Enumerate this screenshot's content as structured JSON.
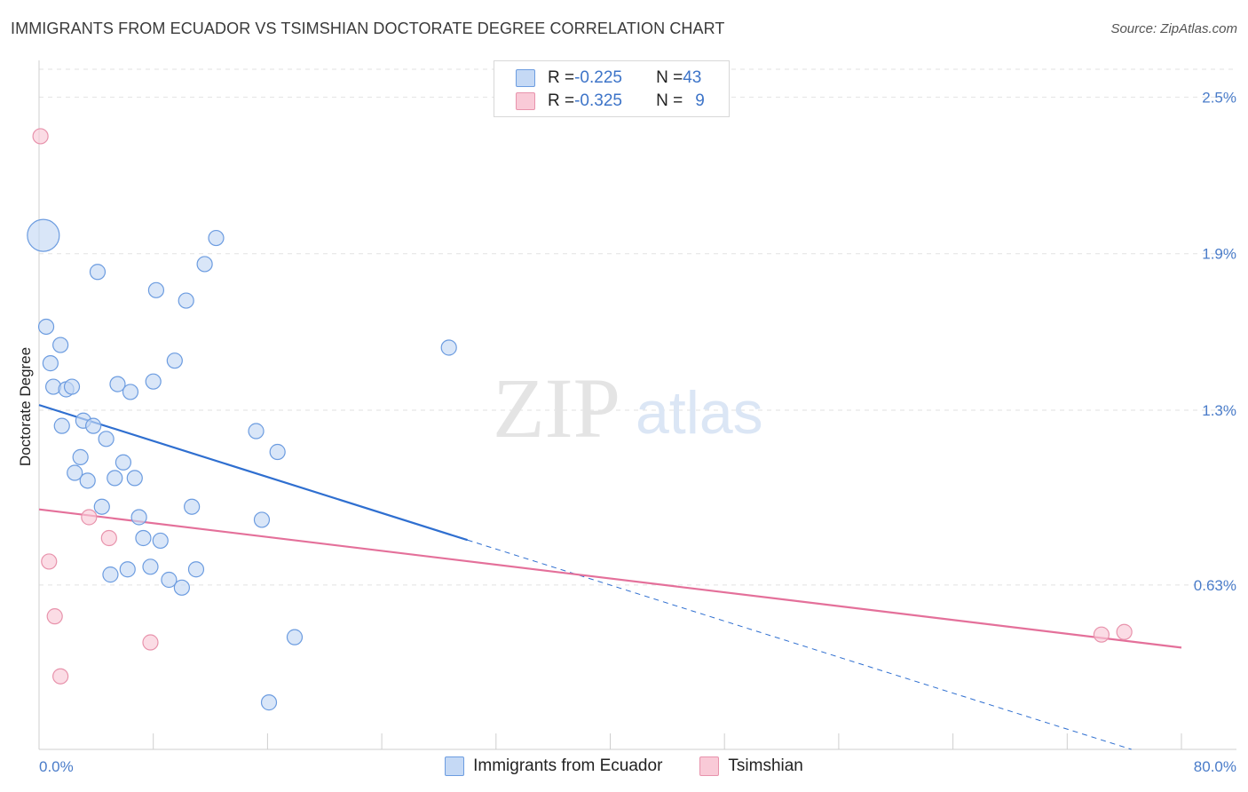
{
  "title": "IMMIGRANTS FROM ECUADOR VS TSIMSHIAN DOCTORATE DEGREE CORRELATION CHART",
  "source": "Source: ZipAtlas.com",
  "watermark": {
    "zip": "ZIP",
    "atlas": "atlas"
  },
  "legend": {
    "rows": [
      {
        "r_label": "R = ",
        "r_value": "-0.225",
        "n_label": "N = ",
        "n_value": "43"
      },
      {
        "r_label": "R = ",
        "r_value": "-0.325",
        "n_label": "N = ",
        "n_value": "9"
      }
    ]
  },
  "bottom_legend": {
    "series1": "Immigrants from Ecuador",
    "series2": "Tsimshian"
  },
  "colors": {
    "blue_fill": "#c5d9f5",
    "blue_stroke": "#6c9ce0",
    "blue_line": "#2f6fd0",
    "pink_fill": "#f9cad7",
    "pink_stroke": "#e893ac",
    "pink_line": "#e4709a",
    "axis_text": "#4a7cc9",
    "grid": "#e2e2e2"
  },
  "chart_data": {
    "type": "scatter",
    "title": "IMMIGRANTS FROM ECUADOR VS TSIMSHIAN DOCTORATE DEGREE CORRELATION CHART",
    "xlabel": "",
    "ylabel": "Doctorate Degree",
    "xlim": [
      0,
      80
    ],
    "ylim": [
      0,
      2.6
    ],
    "x_tick_labels": [
      "0.0%",
      "80.0%"
    ],
    "y_ticks": [
      0.63,
      1.3,
      1.9,
      2.5
    ],
    "y_tick_labels": [
      "0.63%",
      "1.3%",
      "1.9%",
      "2.5%"
    ],
    "series": [
      {
        "name": "Immigrants from Ecuador",
        "color": "blue",
        "points": [
          {
            "x": 0.3,
            "y": 1.97,
            "big": true
          },
          {
            "x": 0.5,
            "y": 1.62
          },
          {
            "x": 0.8,
            "y": 1.48
          },
          {
            "x": 1.0,
            "y": 1.39
          },
          {
            "x": 1.5,
            "y": 1.55
          },
          {
            "x": 1.6,
            "y": 1.24
          },
          {
            "x": 1.9,
            "y": 1.38
          },
          {
            "x": 2.3,
            "y": 1.39
          },
          {
            "x": 2.5,
            "y": 1.06
          },
          {
            "x": 2.9,
            "y": 1.12
          },
          {
            "x": 3.1,
            "y": 1.26
          },
          {
            "x": 3.4,
            "y": 1.03
          },
          {
            "x": 3.8,
            "y": 1.24
          },
          {
            "x": 4.1,
            "y": 1.83
          },
          {
            "x": 4.4,
            "y": 0.93
          },
          {
            "x": 4.7,
            "y": 1.19
          },
          {
            "x": 5.0,
            "y": 0.67
          },
          {
            "x": 5.3,
            "y": 1.04
          },
          {
            "x": 5.5,
            "y": 1.4
          },
          {
            "x": 5.9,
            "y": 1.1
          },
          {
            "x": 6.2,
            "y": 0.69
          },
          {
            "x": 6.4,
            "y": 1.37
          },
          {
            "x": 6.7,
            "y": 1.04
          },
          {
            "x": 7.0,
            "y": 0.89
          },
          {
            "x": 7.3,
            "y": 0.81
          },
          {
            "x": 7.8,
            "y": 0.7
          },
          {
            "x": 8.0,
            "y": 1.41
          },
          {
            "x": 8.2,
            "y": 1.76
          },
          {
            "x": 8.5,
            "y": 0.8
          },
          {
            "x": 9.1,
            "y": 0.65
          },
          {
            "x": 9.5,
            "y": 1.49
          },
          {
            "x": 10.0,
            "y": 0.62
          },
          {
            "x": 10.3,
            "y": 1.72
          },
          {
            "x": 10.7,
            "y": 0.93
          },
          {
            "x": 11.0,
            "y": 0.69
          },
          {
            "x": 11.6,
            "y": 1.86
          },
          {
            "x": 12.4,
            "y": 1.96
          },
          {
            "x": 15.2,
            "y": 1.22
          },
          {
            "x": 15.6,
            "y": 0.88
          },
          {
            "x": 16.1,
            "y": 0.18
          },
          {
            "x": 16.7,
            "y": 1.14
          },
          {
            "x": 17.9,
            "y": 0.43
          },
          {
            "x": 28.7,
            "y": 1.54
          }
        ]
      },
      {
        "name": "Tsimshian",
        "color": "pink",
        "points": [
          {
            "x": 0.1,
            "y": 2.35
          },
          {
            "x": 0.7,
            "y": 0.72
          },
          {
            "x": 1.1,
            "y": 0.51
          },
          {
            "x": 1.5,
            "y": 0.28
          },
          {
            "x": 3.5,
            "y": 0.89
          },
          {
            "x": 4.9,
            "y": 0.81
          },
          {
            "x": 7.8,
            "y": 0.41
          },
          {
            "x": 74.4,
            "y": 0.44
          },
          {
            "x": 76.0,
            "y": 0.45
          }
        ]
      }
    ],
    "trendlines": [
      {
        "series": "Immigrants from Ecuador",
        "x0": 0,
        "y0": 1.32,
        "x_solid_end": 30,
        "x1": 76.5,
        "y1": 0.0
      },
      {
        "series": "Tsimshian",
        "x0": 0,
        "y0": 0.92,
        "x1": 80,
        "y1": 0.39
      }
    ]
  }
}
